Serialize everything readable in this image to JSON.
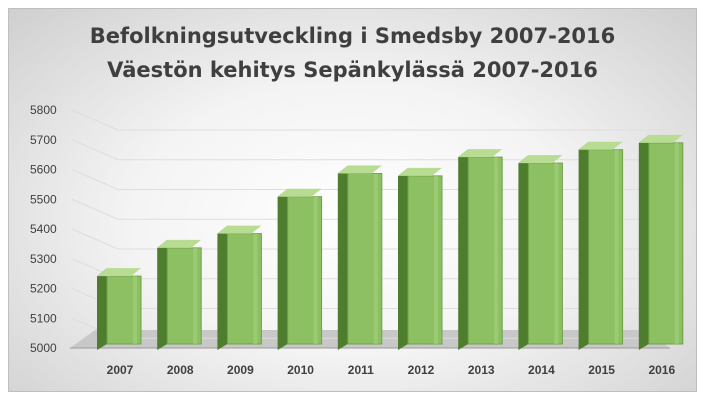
{
  "chart_data": {
    "type": "bar",
    "title": "Befolkningsutveckling i Smedsby 2007-2016",
    "subtitle": "Väestön kehitys Sepänkylässä 2007-2016",
    "categories": [
      "2007",
      "2008",
      "2009",
      "2010",
      "2011",
      "2012",
      "2013",
      "2014",
      "2015",
      "2016"
    ],
    "values": [
      5255,
      5350,
      5398,
      5522,
      5600,
      5592,
      5655,
      5635,
      5680,
      5703
    ],
    "ylim": [
      5000,
      5800
    ],
    "yticks": [
      "5000",
      "5100",
      "5200",
      "5300",
      "5400",
      "5500",
      "5600",
      "5700",
      "5800"
    ],
    "xlabel": "",
    "ylabel": "",
    "grid": true,
    "legend": "none",
    "colors": {
      "bar_front": "#8cc063",
      "bar_front_light": "#a6d17f",
      "bar_side": "#4e7d2e",
      "bar_top": "#b7dc92",
      "floor": "#c8c8c8"
    }
  }
}
